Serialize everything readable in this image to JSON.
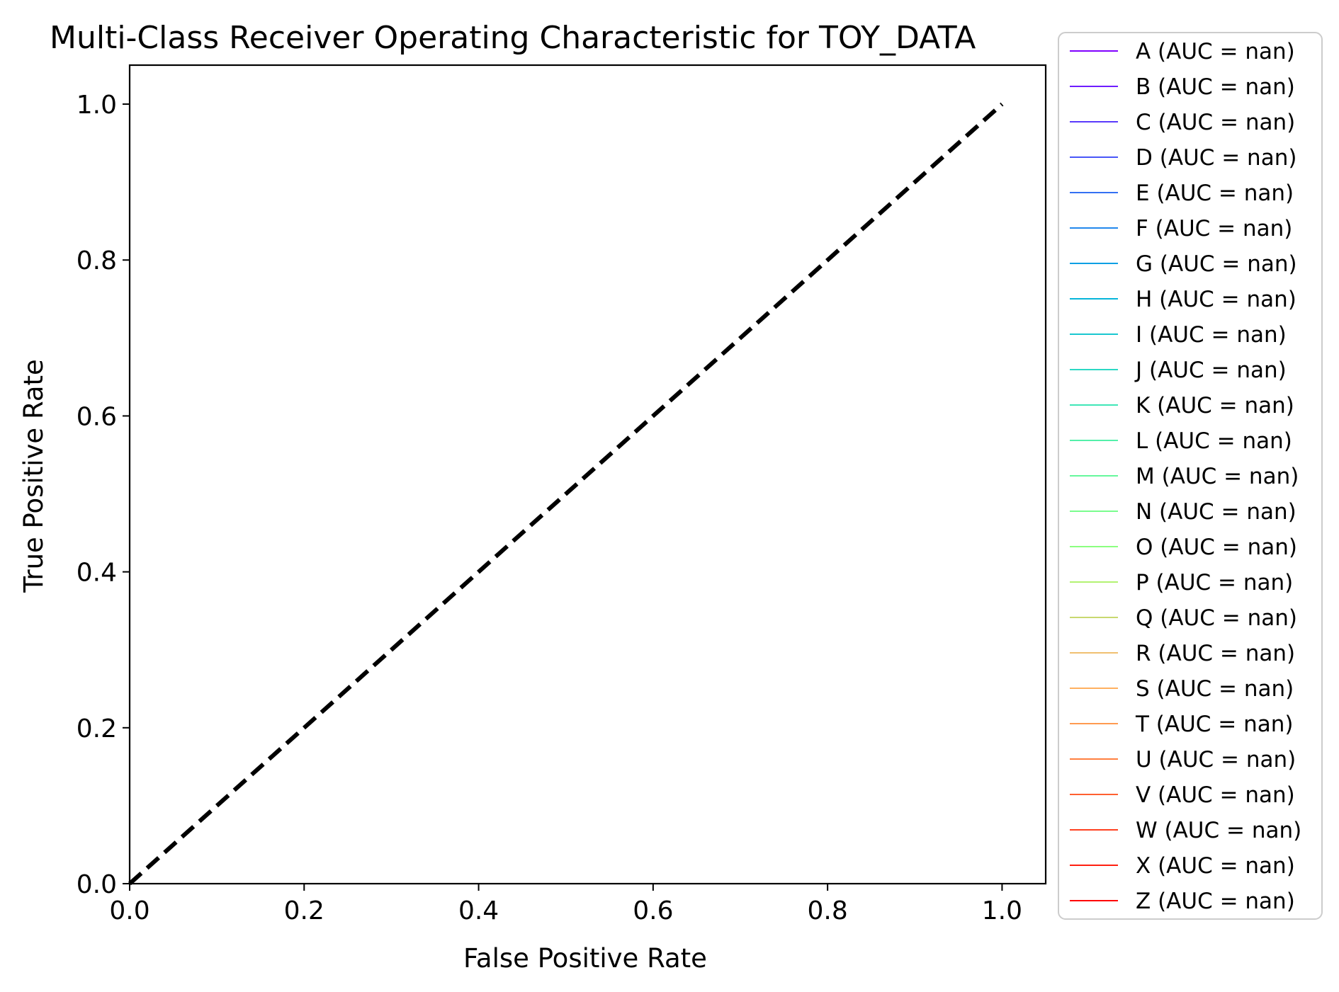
{
  "chart_data": {
    "type": "line",
    "title": "Multi-Class Receiver Operating Characteristic for TOY_DATA",
    "xlabel": "False Positive Rate",
    "ylabel": "True Positive Rate",
    "xlim": [
      0.0,
      1.05
    ],
    "ylim": [
      0.0,
      1.05
    ],
    "grid": false,
    "x_ticks": [
      0.0,
      0.2,
      0.4,
      0.6,
      0.8,
      1.0
    ],
    "x_tick_labels": [
      "0.0",
      "0.2",
      "0.4",
      "0.6",
      "0.8",
      "1.0"
    ],
    "y_ticks": [
      0.0,
      0.2,
      0.4,
      0.6,
      0.8,
      1.0
    ],
    "y_tick_labels": [
      "0.0",
      "0.2",
      "0.4",
      "0.6",
      "0.8",
      "1.0"
    ],
    "legend_position": "outside-right",
    "reference_line": {
      "x": [
        0.0,
        1.0
      ],
      "y": [
        0.0,
        1.0
      ],
      "style": "dashed",
      "color": "#000000"
    },
    "series": [
      {
        "name": "A (AUC = nan)",
        "color": "#8000ff",
        "x": [],
        "y": []
      },
      {
        "name": "B (AUC = nan)",
        "color": "#6e1dfe",
        "x": [],
        "y": []
      },
      {
        "name": "C (AUC = nan)",
        "color": "#5a3afc",
        "x": [],
        "y": []
      },
      {
        "name": "D (AUC = nan)",
        "color": "#4856f8",
        "x": [],
        "y": []
      },
      {
        "name": "E (AUC = nan)",
        "color": "#3470f3",
        "x": [],
        "y": []
      },
      {
        "name": "F (AUC = nan)",
        "color": "#2288ec",
        "x": [],
        "y": []
      },
      {
        "name": "G (AUC = nan)",
        "color": "#0e9fe4",
        "x": [],
        "y": []
      },
      {
        "name": "H (AUC = nan)",
        "color": "#06b5da",
        "x": [],
        "y": []
      },
      {
        "name": "I (AUC = nan)",
        "color": "#1ac7d0",
        "x": [],
        "y": []
      },
      {
        "name": "J (AUC = nan)",
        "color": "#2cd8c4",
        "x": [],
        "y": []
      },
      {
        "name": "K (AUC = nan)",
        "color": "#40e6b7",
        "x": [],
        "y": []
      },
      {
        "name": "L (AUC = nan)",
        "color": "#54f0aa",
        "x": [],
        "y": []
      },
      {
        "name": "M (AUC = nan)",
        "color": "#66f89c",
        "x": [],
        "y": []
      },
      {
        "name": "N (AUC = nan)",
        "color": "#7afd8e",
        "x": [],
        "y": []
      },
      {
        "name": "O (AUC = nan)",
        "color": "#8cff80",
        "x": [],
        "y": []
      },
      {
        "name": "P (AUC = nan)",
        "color": "#b2f272",
        "x": [],
        "y": []
      },
      {
        "name": "Q (AUC = nan)",
        "color": "#c8d870",
        "x": [],
        "y": []
      },
      {
        "name": "R (AUC = nan)",
        "color": "#f0c070",
        "x": [],
        "y": []
      },
      {
        "name": "S (AUC = nan)",
        "color": "#ffb060",
        "x": [],
        "y": []
      },
      {
        "name": "T (AUC = nan)",
        "color": "#ff9a50",
        "x": [],
        "y": []
      },
      {
        "name": "U (AUC = nan)",
        "color": "#ff8040",
        "x": [],
        "y": []
      },
      {
        "name": "V (AUC = nan)",
        "color": "#ff6030",
        "x": [],
        "y": []
      },
      {
        "name": "W (AUC = nan)",
        "color": "#ff4020",
        "x": [],
        "y": []
      },
      {
        "name": "X (AUC = nan)",
        "color": "#ff2010",
        "x": [],
        "y": []
      },
      {
        "name": "Z (AUC = nan)",
        "color": "#ff0000",
        "x": [],
        "y": []
      }
    ]
  }
}
